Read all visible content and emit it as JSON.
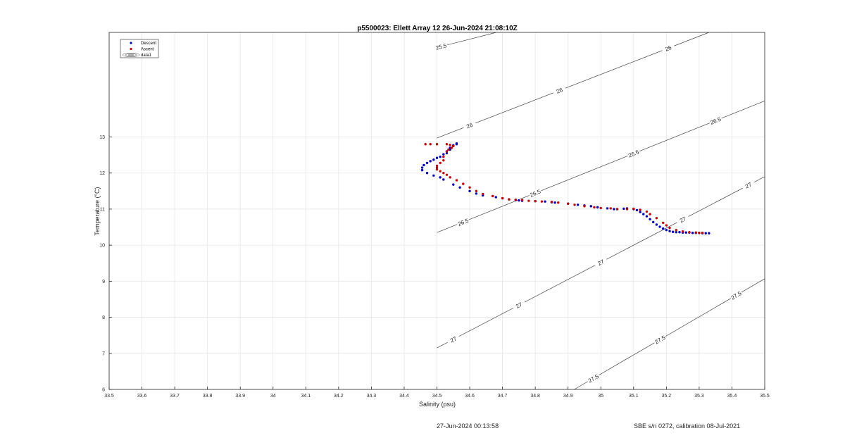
{
  "chart_data": {
    "type": "scatter",
    "title": "p5500023: Ellett Array 12 26-Jun-2024 21:08:10Z",
    "xlabel": "Salinity (psu)",
    "ylabel": "Temperature (°C)",
    "xlim": [
      33.5,
      35.5
    ],
    "ylim": [
      6,
      15.9
    ],
    "xticks": [
      "33.5",
      "33.6",
      "33.7",
      "33.8",
      "33.9",
      "34",
      "34.1",
      "34.2",
      "34.3",
      "34.4",
      "34.5",
      "34.6",
      "34.7",
      "34.8",
      "34.9",
      "35",
      "35.1",
      "35.2",
      "35.3",
      "35.4",
      "35.5"
    ],
    "yticks": [
      "6",
      "7",
      "8",
      "9",
      "10",
      "11",
      "12",
      "13"
    ],
    "grid": true,
    "legend_position": "top-left",
    "legend": [
      "Descent",
      "Ascent",
      "data1"
    ],
    "series": [
      {
        "name": "Descent",
        "color": "#0000cc",
        "x": [
          34.56,
          34.56,
          34.55,
          34.55,
          34.54,
          34.54,
          34.53,
          34.53,
          34.52,
          34.51,
          34.5,
          34.49,
          34.48,
          34.47,
          34.46,
          34.455,
          34.455,
          34.47,
          34.49,
          34.51,
          34.52,
          34.55,
          34.57,
          34.6,
          34.62,
          34.64,
          34.68,
          34.7,
          34.72,
          34.74,
          34.75,
          34.76,
          34.8,
          34.83,
          34.85,
          34.86,
          34.9,
          34.93,
          34.95,
          34.97,
          34.99,
          35.02,
          35.04,
          35.05,
          35.07,
          35.08,
          35.1,
          35.11,
          35.12,
          35.13,
          35.14,
          35.15,
          35.16,
          35.17,
          35.18,
          35.19,
          35.2,
          35.21,
          35.22,
          35.23,
          35.24,
          35.25,
          35.26,
          35.27,
          35.28,
          35.29,
          35.3,
          35.31,
          35.32,
          35.33
        ],
        "y": [
          12.82,
          12.8,
          12.77,
          12.75,
          12.7,
          12.65,
          12.6,
          12.55,
          12.52,
          12.45,
          12.42,
          12.37,
          12.33,
          12.28,
          12.22,
          12.15,
          12.08,
          12.0,
          11.93,
          11.88,
          11.82,
          11.68,
          11.6,
          11.5,
          11.43,
          11.38,
          11.33,
          11.3,
          11.27,
          11.25,
          11.24,
          11.23,
          11.22,
          11.21,
          11.19,
          11.18,
          11.15,
          11.12,
          11.1,
          11.08,
          11.05,
          11.02,
          11.0,
          11.0,
          11.01,
          11.02,
          11.0,
          10.97,
          10.92,
          10.86,
          10.8,
          10.72,
          10.64,
          10.57,
          10.51,
          10.46,
          10.42,
          10.39,
          10.37,
          10.36,
          10.36,
          10.35,
          10.35,
          10.35,
          10.34,
          10.34,
          10.34,
          10.33,
          10.33,
          10.33
        ]
      },
      {
        "name": "Ascent",
        "color": "#cc0000",
        "x": [
          34.465,
          34.48,
          34.5,
          34.53,
          34.54,
          34.55,
          34.545,
          34.535,
          34.53,
          34.52,
          34.52,
          34.51,
          34.5,
          34.5,
          34.5,
          34.51,
          34.52,
          34.53,
          34.54,
          34.56,
          34.58,
          34.6,
          34.62,
          34.64,
          34.67,
          34.7,
          34.72,
          34.74,
          34.76,
          34.78,
          34.8,
          34.82,
          34.85,
          34.87,
          34.9,
          34.92,
          34.95,
          34.98,
          35.0,
          35.03,
          35.05,
          35.08,
          35.1,
          35.12,
          35.14,
          35.15,
          35.17,
          35.19,
          35.2,
          35.21,
          35.23,
          35.25,
          35.27,
          35.29,
          35.3,
          35.31
        ],
        "y": [
          12.8,
          12.8,
          12.8,
          12.8,
          12.78,
          12.75,
          12.7,
          12.65,
          12.6,
          12.45,
          12.35,
          12.28,
          12.2,
          12.15,
          12.1,
          12.05,
          12.0,
          11.95,
          11.88,
          11.8,
          11.7,
          11.6,
          11.5,
          11.42,
          11.36,
          11.3,
          11.27,
          11.26,
          11.25,
          11.23,
          11.22,
          11.21,
          11.2,
          11.18,
          11.15,
          11.12,
          11.08,
          11.05,
          11.03,
          11.02,
          11.0,
          11.0,
          11.01,
          10.98,
          10.93,
          10.86,
          10.75,
          10.62,
          10.55,
          10.48,
          10.42,
          10.38,
          10.36,
          10.35,
          10.34,
          10.34
        ]
      }
    ],
    "contours": [
      {
        "label": "25.5",
        "x": [
          34.5,
          34.88
        ],
        "y": [
          15.48,
          16.36
        ],
        "label_at": [
          0.07
        ]
      },
      {
        "label": "26",
        "x": [
          34.5,
          35.33
        ],
        "y": [
          12.97,
          15.9
        ],
        "label_at": [
          0.12,
          0.45,
          0.85
        ]
      },
      {
        "label": "26.5",
        "x": [
          34.5,
          35.5
        ],
        "y": [
          10.35,
          14.0
        ],
        "label_at": [
          0.08,
          0.3,
          0.6,
          0.85
        ]
      },
      {
        "label": "27",
        "x": [
          34.5,
          35.5
        ],
        "y": [
          7.15,
          11.9
        ],
        "label_at": [
          0.05,
          0.25,
          0.5,
          0.75,
          0.95
        ]
      },
      {
        "label": "27.5",
        "x": [
          34.9,
          35.5
        ],
        "y": [
          5.9,
          9.07
        ],
        "label_at": [
          0.1,
          0.45,
          0.85
        ]
      }
    ]
  },
  "footer": {
    "left": "27-Jun-2024 00:13:58",
    "right": "SBE s/n 0272, calibration 08-Jul-2021"
  }
}
